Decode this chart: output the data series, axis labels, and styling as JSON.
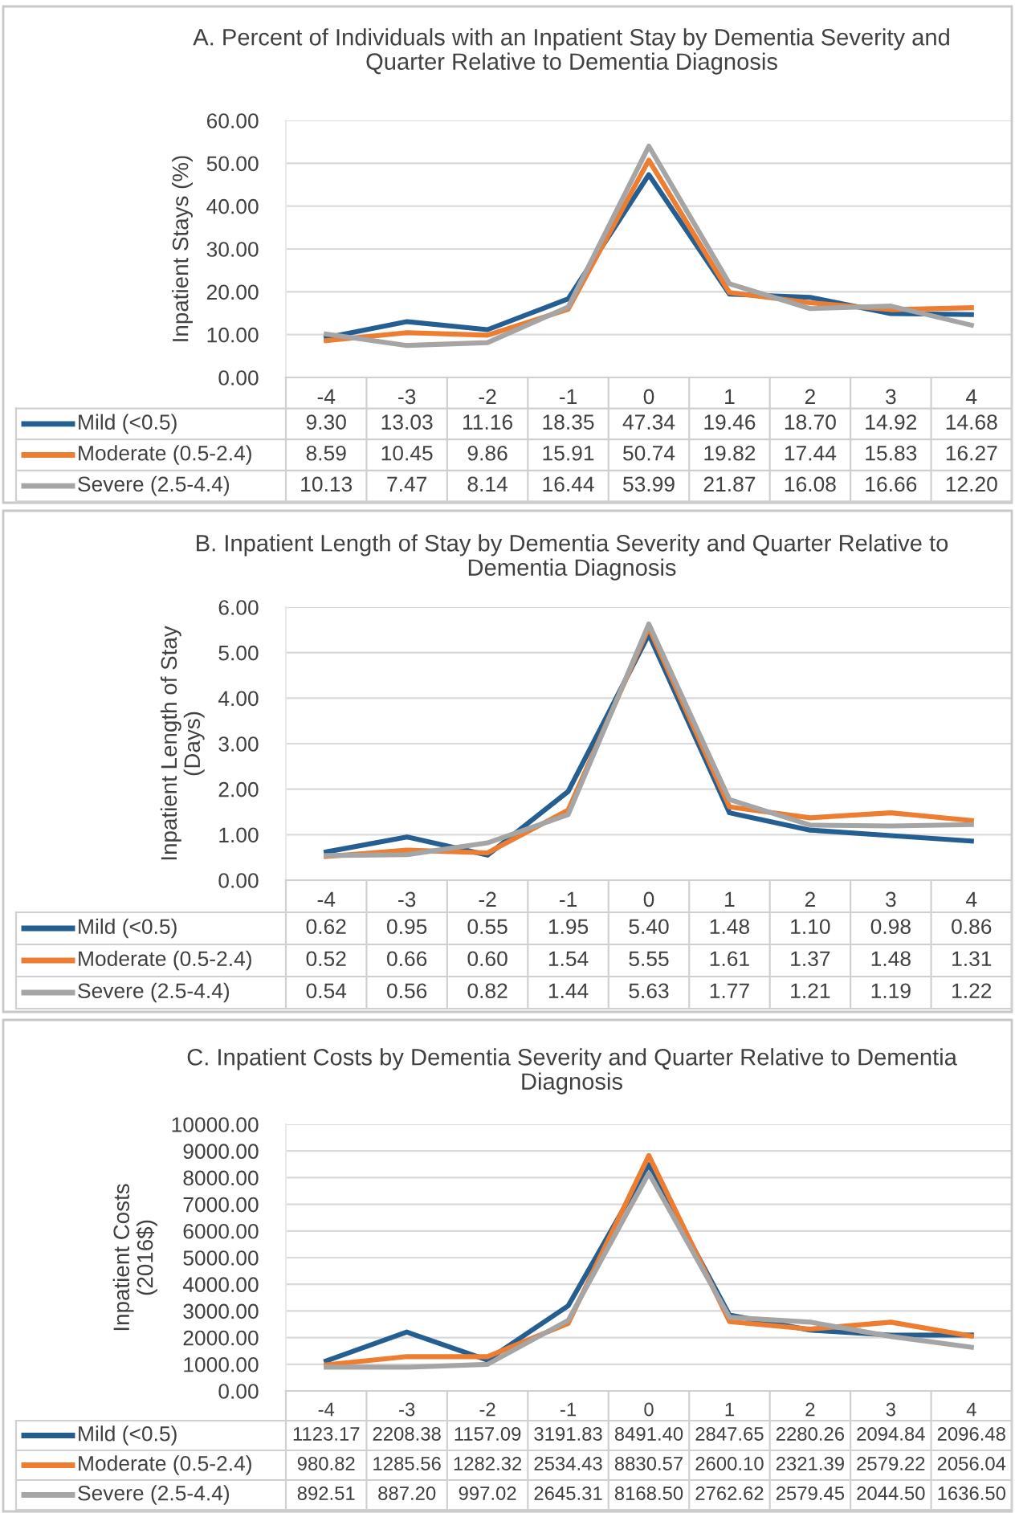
{
  "chart_data": [
    {
      "type": "line",
      "title": "A. Percent of Individuals with an Inpatient Stay by Dementia Severity and\nQuarter Relative to Dementia Diagnosis",
      "ylabel": "Inpatient Stays (%)",
      "legend": "bottom left",
      "categories": [
        "-4",
        "-3",
        "-2",
        "-1",
        "0",
        "1",
        "2",
        "3",
        "4"
      ],
      "ylim": [
        0,
        60
      ],
      "yticks": [
        {
          "value": 0,
          "label": "0.00"
        },
        {
          "value": 10,
          "label": "10.00"
        },
        {
          "value": 20,
          "label": "20.00"
        },
        {
          "value": 30,
          "label": "30.00"
        },
        {
          "value": 40,
          "label": "40.00"
        },
        {
          "value": 50,
          "label": "50.00"
        },
        {
          "value": 60,
          "label": "60.00"
        }
      ],
      "grid": "y",
      "series": [
        {
          "name": "Mild (<0.5)",
          "color": "#255e91",
          "values": [
            9.3,
            13.03,
            11.16,
            18.35,
            47.34,
            19.46,
            18.7,
            14.92,
            14.68
          ],
          "value_labels": [
            "9.30",
            "13.03",
            "11.16",
            "18.35",
            "47.34",
            "19.46",
            "18.70",
            "14.92",
            "14.68"
          ]
        },
        {
          "name": "Moderate (0.5-2.4)",
          "color": "#ed7d31",
          "values": [
            8.59,
            10.45,
            9.86,
            15.91,
            50.74,
            19.82,
            17.44,
            15.83,
            16.27
          ],
          "value_labels": [
            "8.59",
            "10.45",
            "9.86",
            "15.91",
            "50.74",
            "19.82",
            "17.44",
            "15.83",
            "16.27"
          ]
        },
        {
          "name": "Severe (2.5-4.4)",
          "color": "#a5a5a5",
          "values": [
            10.13,
            7.47,
            8.14,
            16.44,
            53.99,
            21.87,
            16.08,
            16.66,
            12.2
          ],
          "value_labels": [
            "10.13",
            "7.47",
            "8.14",
            "16.44",
            "53.99",
            "21.87",
            "16.08",
            "16.66",
            "12.20"
          ]
        }
      ]
    },
    {
      "type": "line",
      "title": "B. Inpatient Length of Stay by Dementia Severity and Quarter Relative to\nDementia Diagnosis",
      "ylabel": "Inpatient Length of Stay\n(Days)",
      "legend": "bottom left",
      "categories": [
        "-4",
        "-3",
        "-2",
        "-1",
        "0",
        "1",
        "2",
        "3",
        "4"
      ],
      "ylim": [
        0,
        6
      ],
      "yticks": [
        {
          "value": 0,
          "label": "0.00"
        },
        {
          "value": 1,
          "label": "1.00"
        },
        {
          "value": 2,
          "label": "2.00"
        },
        {
          "value": 3,
          "label": "3.00"
        },
        {
          "value": 4,
          "label": "4.00"
        },
        {
          "value": 5,
          "label": "5.00"
        },
        {
          "value": 6,
          "label": "6.00"
        }
      ],
      "grid": "y",
      "series": [
        {
          "name": "Mild (<0.5)",
          "color": "#255e91",
          "values": [
            0.62,
            0.95,
            0.55,
            1.95,
            5.4,
            1.48,
            1.1,
            0.98,
            0.86
          ],
          "value_labels": [
            "0.62",
            "0.95",
            "0.55",
            "1.95",
            "5.40",
            "1.48",
            "1.10",
            "0.98",
            "0.86"
          ]
        },
        {
          "name": "Moderate (0.5-2.4)",
          "color": "#ed7d31",
          "values": [
            0.52,
            0.66,
            0.6,
            1.54,
            5.55,
            1.61,
            1.37,
            1.48,
            1.31
          ],
          "value_labels": [
            "0.52",
            "0.66",
            "0.60",
            "1.54",
            "5.55",
            "1.61",
            "1.37",
            "1.48",
            "1.31"
          ]
        },
        {
          "name": "Severe (2.5-4.4)",
          "color": "#a5a5a5",
          "values": [
            0.54,
            0.56,
            0.82,
            1.44,
            5.63,
            1.77,
            1.21,
            1.19,
            1.22
          ],
          "value_labels": [
            "0.54",
            "0.56",
            "0.82",
            "1.44",
            "5.63",
            "1.77",
            "1.21",
            "1.19",
            "1.22"
          ]
        }
      ]
    },
    {
      "type": "line",
      "title": "C. Inpatient Costs by Dementia Severity and Quarter Relative to Dementia\nDiagnosis",
      "ylabel": "Inpatient Costs\n(2016$)",
      "legend": "bottom left",
      "categories": [
        "-4",
        "-3",
        "-2",
        "-1",
        "0",
        "1",
        "2",
        "3",
        "4"
      ],
      "ylim": [
        0,
        10000
      ],
      "yticks": [
        {
          "value": 0,
          "label": "0.00"
        },
        {
          "value": 1000,
          "label": "1000.00"
        },
        {
          "value": 2000,
          "label": "2000.00"
        },
        {
          "value": 3000,
          "label": "3000.00"
        },
        {
          "value": 4000,
          "label": "4000.00"
        },
        {
          "value": 5000,
          "label": "5000.00"
        },
        {
          "value": 6000,
          "label": "6000.00"
        },
        {
          "value": 7000,
          "label": "7000.00"
        },
        {
          "value": 8000,
          "label": "8000.00"
        },
        {
          "value": 9000,
          "label": "9000.00"
        },
        {
          "value": 10000,
          "label": "10000.00"
        }
      ],
      "grid": "y",
      "series": [
        {
          "name": "Mild (<0.5)",
          "color": "#255e91",
          "values": [
            1123.17,
            2208.38,
            1157.09,
            3191.83,
            8491.4,
            2847.65,
            2280.26,
            2094.84,
            2096.48
          ],
          "value_labels": [
            "1123.17",
            "2208.38",
            "1157.09",
            "3191.83",
            "8491.40",
            "2847.65",
            "2280.26",
            "2094.84",
            "2096.48"
          ]
        },
        {
          "name": "Moderate (0.5-2.4)",
          "color": "#ed7d31",
          "values": [
            980.82,
            1285.56,
            1282.32,
            2534.43,
            8830.57,
            2600.1,
            2321.39,
            2579.22,
            2056.04
          ],
          "value_labels": [
            "980.82",
            "1285.56",
            "1282.32",
            "2534.43",
            "8830.57",
            "2600.10",
            "2321.39",
            "2579.22",
            "2056.04"
          ]
        },
        {
          "name": "Severe (2.5-4.4)",
          "color": "#a5a5a5",
          "values": [
            892.51,
            887.2,
            997.02,
            2645.31,
            8168.5,
            2762.62,
            2579.45,
            2044.5,
            1636.5
          ],
          "value_labels": [
            "892.51",
            "887.20",
            "997.02",
            "2645.31",
            "8168.50",
            "2762.62",
            "2579.45",
            "2044.50",
            "1636.50"
          ]
        }
      ]
    }
  ]
}
